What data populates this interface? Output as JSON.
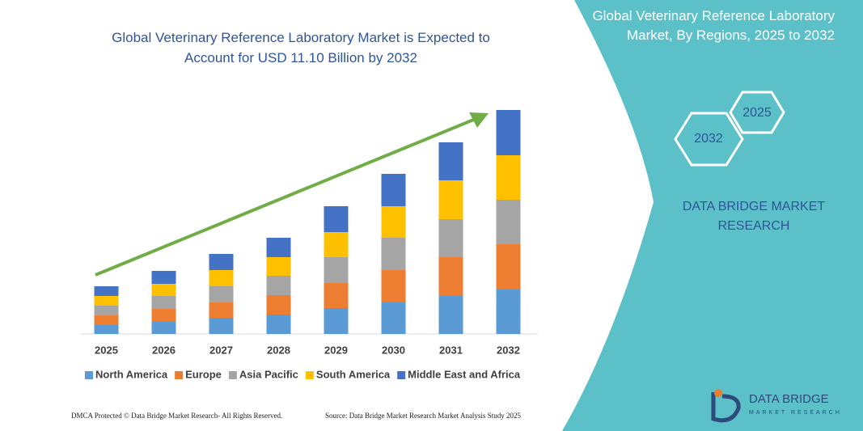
{
  "chart_data": {
    "type": "bar",
    "stacked": true,
    "title": "Global Veterinary Reference Laboratory Market is Expected to Account for USD 11.10 Billion by 2032",
    "categories": [
      "2025",
      "2026",
      "2027",
      "2028",
      "2029",
      "2030",
      "2031",
      "2032"
    ],
    "series": [
      {
        "name": "North America",
        "color": "#5b9bd5",
        "values": [
          11,
          15,
          20,
          24,
          32,
          39,
          47,
          55
        ]
      },
      {
        "name": "Europe",
        "color": "#ed7d31",
        "values": [
          12,
          16,
          19,
          24,
          31,
          40,
          48,
          56
        ]
      },
      {
        "name": "Asia Pacific",
        "color": "#a5a5a5",
        "values": [
          12,
          16,
          20,
          24,
          32,
          40,
          47,
          55
        ]
      },
      {
        "name": "South America",
        "color": "#ffc000",
        "values": [
          12,
          15,
          20,
          23,
          31,
          39,
          48,
          55
        ]
      },
      {
        "name": "Middle East and Africa",
        "color": "#4472c4",
        "values": [
          12,
          16,
          20,
          24,
          32,
          40,
          47,
          56
        ]
      }
    ],
    "legend": "bottom"
  },
  "panel": {
    "title": "Global Veterinary Reference Laboratory Market, By Regions, 2025 to 2032",
    "hex_start": "2025",
    "hex_end": "2032",
    "brand": "DATA BRIDGE MARKET RESEARCH"
  },
  "logo": {
    "name": "DATA BRIDGE",
    "tagline": "MARKET RESEARCH"
  },
  "footer": {
    "left": "DMCA Protected © Data Bridge Market Research- All Rights Reserved.",
    "right": "Source: Data Bridge Market Research Market Analysis Study 2025"
  }
}
